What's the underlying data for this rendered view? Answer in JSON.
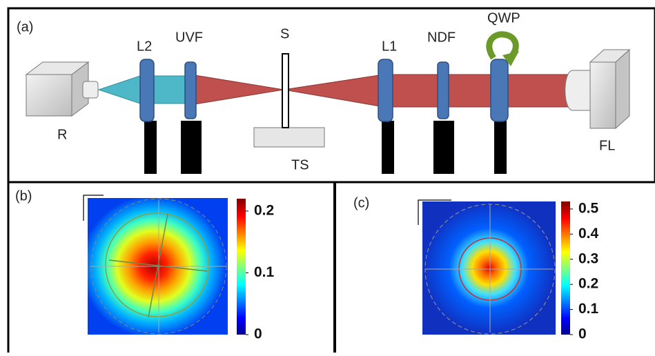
{
  "panel_a": {
    "label": "(a)",
    "components": [
      "R",
      "L2",
      "UVF",
      "S",
      "L1",
      "NDF",
      "QWP",
      "FL",
      "TS"
    ]
  },
  "panel_b": {
    "label": "(b)",
    "colorbar": {
      "clim": [
        0,
        0.22
      ],
      "ticks": [
        0.2,
        0.1,
        0
      ]
    }
  },
  "panel_c": {
    "label": "(c)",
    "colorbar": {
      "clim": [
        0,
        0.53
      ],
      "ticks": [
        0.5,
        0.4,
        0.3,
        0.2,
        0.1,
        0
      ]
    }
  }
}
